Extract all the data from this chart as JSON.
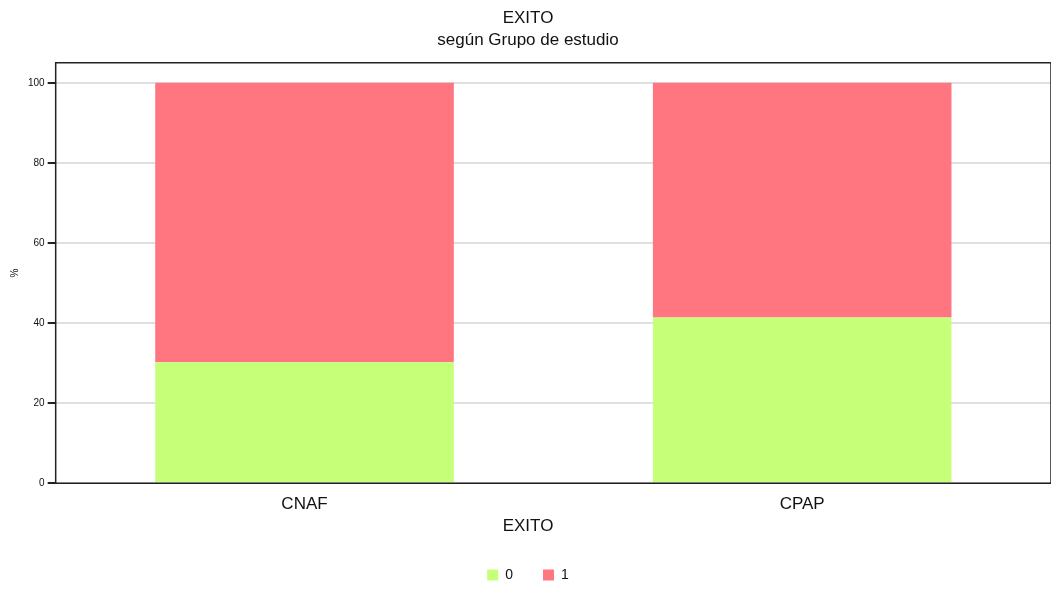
{
  "chart_data": {
    "type": "bar",
    "title": "EXITO",
    "subtitle": "según Grupo de estudio",
    "ylabel": "%",
    "legend_title": "EXITO",
    "categories": [
      "CNAF",
      "CPAP"
    ],
    "stacked": true,
    "series": [
      {
        "name": "0",
        "color": "#c6ff78",
        "values": [
          30.2,
          41.4
        ]
      },
      {
        "name": "1",
        "color": "#ff7580",
        "values": [
          69.8,
          58.6
        ]
      }
    ],
    "ylim": [
      0,
      105
    ],
    "yticks": [
      0,
      20,
      40,
      60,
      80,
      100
    ],
    "grid": "y",
    "legend": "bottom"
  }
}
